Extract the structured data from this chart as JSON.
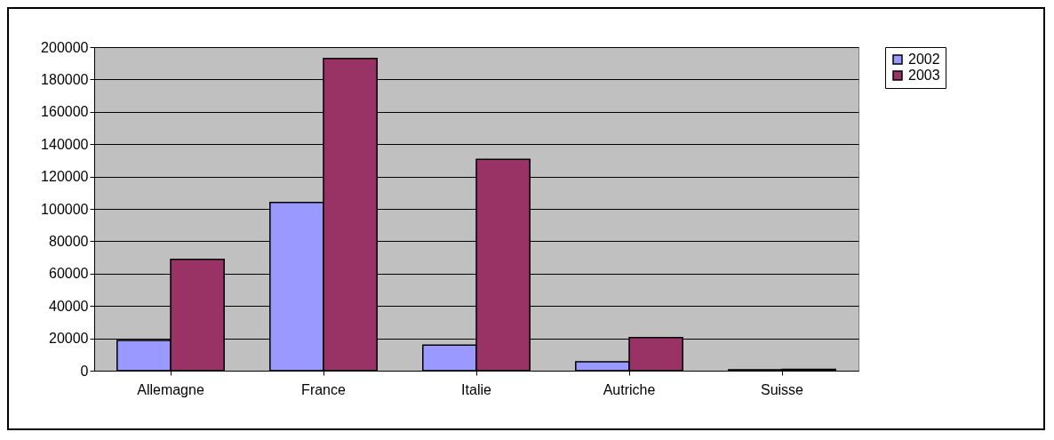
{
  "chart_data": {
    "type": "bar",
    "categories": [
      "Allemagne",
      "France",
      "Italie",
      "Autriche",
      "Suisse"
    ],
    "series": [
      {
        "name": "2002",
        "color": "#9999ff",
        "values": [
          18700,
          104000,
          15800,
          5500,
          500
        ]
      },
      {
        "name": "2003",
        "color": "#993366",
        "values": [
          68800,
          193000,
          130600,
          20500,
          800
        ]
      }
    ],
    "ylim": [
      0,
      200000
    ],
    "yticks": [
      0,
      20000,
      40000,
      60000,
      80000,
      100000,
      120000,
      140000,
      160000,
      180000,
      200000
    ],
    "grid": "y",
    "legend": "right"
  }
}
